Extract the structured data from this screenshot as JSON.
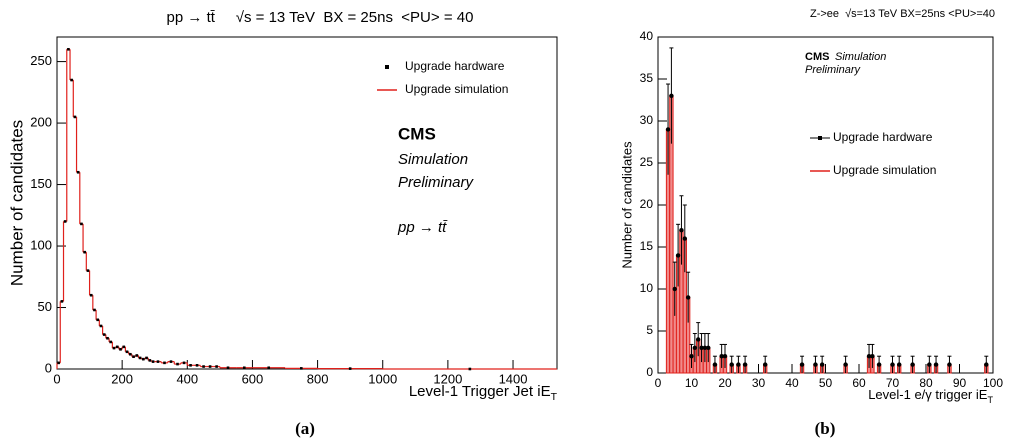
{
  "chart_data": [
    {
      "type": "histogram",
      "title": "pp → tt̄     √s = 13 TeV  BX = 25ns  <PU> = 40",
      "x_label": "Level-1 Trigger Jet iE",
      "x_label_sub": "T",
      "y_label": "Number of candidates",
      "annotations": [
        "CMS",
        "Simulation",
        "Preliminary",
        "pp → tt̄"
      ],
      "panel_label": "(a)",
      "bins": [
        0,
        10,
        20,
        30,
        40,
        50,
        60,
        70,
        80,
        90,
        100,
        110,
        120,
        130,
        140,
        150,
        160,
        170,
        180,
        190,
        200,
        210,
        220,
        230,
        240,
        250,
        260,
        270,
        280,
        290,
        300,
        320,
        340,
        360,
        380,
        400,
        420,
        440,
        460,
        480,
        500,
        550,
        600,
        700,
        800,
        1000,
        1535
      ],
      "series": [
        {
          "name": "Upgrade hardware",
          "color": "#000000",
          "style": "points",
          "values": [
            5,
            55,
            120,
            260,
            235,
            205,
            160,
            118,
            95,
            80,
            60,
            48,
            40,
            35,
            28,
            25,
            22,
            17,
            18,
            16,
            18,
            14,
            12,
            10,
            11,
            9,
            8,
            9,
            7,
            6,
            6,
            5,
            6,
            4,
            5,
            3,
            3,
            2,
            2,
            2,
            1,
            1,
            1,
            0.5,
            0.3,
            0
          ]
        },
        {
          "name": "Upgrade simulation",
          "color": "#e0201b",
          "style": "step",
          "values": [
            5,
            55,
            120,
            260,
            235,
            205,
            160,
            118,
            95,
            80,
            60,
            48,
            40,
            35,
            28,
            25,
            22,
            17,
            18,
            16,
            18,
            14,
            12,
            10,
            11,
            9,
            8,
            9,
            7,
            6,
            6,
            5,
            6,
            4,
            5,
            3,
            3,
            2,
            2,
            2,
            1,
            1,
            1,
            0.5,
            0.3,
            0
          ]
        }
      ],
      "xlim": [
        0,
        1535
      ],
      "ylim": [
        0,
        270
      ],
      "xticks": [
        0,
        200,
        400,
        600,
        800,
        1000,
        1200,
        1400
      ],
      "yticks": [
        0,
        50,
        100,
        150,
        200,
        250
      ],
      "grid": false
    },
    {
      "type": "scatter",
      "title": "Z->ee  √s=13 TeV BX=25ns <PU>=40",
      "x_label": "Level-1 e/γ trigger iE",
      "x_label_sub": "T",
      "y_label": "Number of candidates",
      "annotations": [
        "CMS",
        "Simulation",
        "Preliminary"
      ],
      "panel_label": "(b)",
      "x": [
        3,
        4,
        5,
        6,
        7,
        8,
        9,
        10,
        11,
        12,
        13,
        14,
        15,
        17,
        19,
        20,
        22,
        24,
        26,
        32,
        43,
        47,
        49,
        56,
        63,
        64,
        66,
        70,
        72,
        76,
        81,
        83,
        87,
        98
      ],
      "series": [
        {
          "name": "Upgrade hardware",
          "color": "#000000",
          "style": "points",
          "values": [
            29,
            33,
            10,
            14,
            17,
            16,
            9,
            2,
            3,
            4,
            3,
            3,
            3,
            1,
            2,
            2,
            1,
            1,
            1,
            1,
            1,
            1,
            1,
            1,
            2,
            2,
            1,
            1,
            1,
            1,
            1,
            1,
            1,
            1
          ],
          "errors": [
            5.4,
            5.7,
            3.2,
            3.7,
            4.1,
            4,
            3,
            1.4,
            1.7,
            2,
            1.7,
            1.7,
            1.7,
            1,
            1.4,
            1.4,
            1,
            1,
            1,
            1,
            1,
            1,
            1,
            1,
            1.4,
            1.4,
            1,
            1,
            1,
            1,
            1,
            1,
            1,
            1
          ]
        },
        {
          "name": "Upgrade simulation",
          "color": "#e0201b",
          "style": "bar",
          "values": [
            29,
            33,
            10,
            14,
            17,
            16,
            9,
            2,
            3,
            4,
            3,
            3,
            3,
            1,
            2,
            2,
            1,
            1,
            1,
            1,
            1,
            1,
            1,
            1,
            2,
            2,
            1,
            1,
            1,
            1,
            1,
            1,
            1,
            1
          ]
        }
      ],
      "xlim": [
        0,
        100
      ],
      "ylim": [
        0,
        40
      ],
      "xticks": [
        0,
        10,
        20,
        30,
        40,
        50,
        60,
        70,
        80,
        90,
        100
      ],
      "yticks": [
        0,
        5,
        10,
        15,
        20,
        25,
        30,
        35,
        40
      ],
      "grid": false
    }
  ]
}
